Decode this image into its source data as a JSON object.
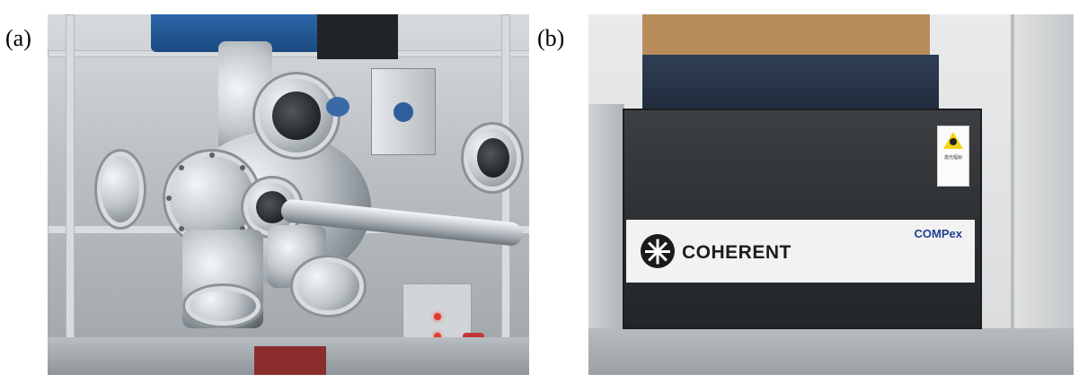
{
  "panels": [
    {
      "label": "(a)"
    },
    {
      "label": "(b)"
    }
  ],
  "photo_b": {
    "brand": "COHERENT",
    "model": "COMPex",
    "warning_sign": "激光辐射"
  }
}
